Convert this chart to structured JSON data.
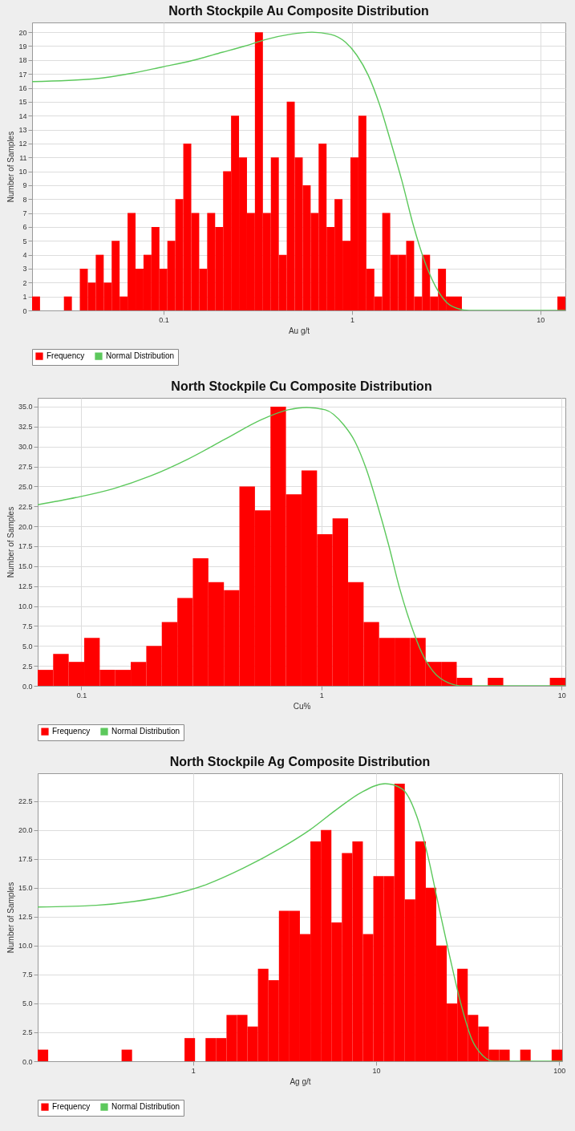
{
  "chart_data": [
    {
      "type": "histogram",
      "title": "North Stockpile Au Composite Distribution",
      "xlabel": "Au g/t",
      "ylabel": "Number of Samples",
      "log": "x",
      "grid": true,
      "legend": "bottom",
      "xlim": [
        0.02,
        13.59
      ],
      "xticks": [
        0.1,
        1,
        10
      ],
      "ylim": [
        0,
        20.7
      ],
      "yticks": [
        0,
        1,
        2,
        3,
        4,
        5,
        6,
        7,
        8,
        9,
        10,
        11,
        12,
        13,
        14,
        15,
        16,
        17,
        18,
        19,
        20
      ],
      "bins": [
        0.02,
        0.02204,
        0.0243,
        0.02678,
        0.02952,
        0.03254,
        0.03586,
        0.03953,
        0.04357,
        0.04802,
        0.05293,
        0.05834,
        0.0643,
        0.07088,
        0.07813,
        0.0861,
        0.09491,
        0.1046,
        0.1153,
        0.1271,
        0.1401,
        0.1544,
        0.1702,
        0.1876,
        0.2068,
        0.2279,
        0.2512,
        0.2769,
        0.3051,
        0.3364,
        0.3708,
        0.4087,
        0.4504,
        0.4965,
        0.5473,
        0.6031,
        0.6648,
        0.7328,
        0.8076,
        0.8902,
        0.9813,
        1.082,
        1.192,
        1.314,
        1.448,
        1.596,
        1.76,
        1.94,
        2.138,
        2.356,
        2.597,
        2.863,
        3.155,
        3.478,
        3.834,
        4.225,
        4.657,
        5.133,
        5.657,
        6.236,
        6.874,
        7.577,
        8.35,
        9.204,
        10.15,
        11.18,
        12.33,
        13.59
      ],
      "series": [
        {
          "name": "Frequency",
          "color": "#ff0000",
          "values": [
            1,
            0,
            0,
            0,
            1,
            0,
            3,
            2,
            4,
            2,
            5,
            1,
            7,
            3,
            4,
            6,
            3,
            5,
            8,
            12,
            7,
            3,
            7,
            6,
            10,
            14,
            11,
            7,
            20,
            7,
            11,
            4,
            15,
            11,
            9,
            7,
            12,
            6,
            8,
            5,
            11,
            14,
            3,
            1,
            7,
            4,
            4,
            5,
            1,
            4,
            1,
            3,
            1,
            1,
            0,
            0,
            0,
            0,
            0,
            0,
            0,
            0,
            0,
            0,
            0,
            0,
            1
          ]
        },
        {
          "name": "Normal Distribution",
          "type": "line",
          "color": "#5cc85c",
          "x": [
            0.02,
            0.0431,
            0.0681,
            0.0982,
            0.1416,
            0.204,
            0.269,
            0.354,
            0.466,
            0.613,
            0.77,
            0.925,
            1.06,
            1.22,
            1.4,
            1.6,
            1.84,
            2.11,
            2.42,
            2.77,
            3.18,
            3.65,
            4.19,
            13.59
          ],
          "values": [
            16.45,
            16.65,
            17.05,
            17.5,
            17.96,
            18.55,
            19.0,
            19.5,
            19.84,
            20.0,
            19.84,
            19.27,
            18.35,
            16.9,
            14.8,
            12.2,
            9.33,
            6.2,
            3.6,
            1.75,
            0.58,
            0.13,
            0,
            0
          ]
        }
      ]
    },
    {
      "type": "histogram",
      "title": "North Stockpile Cu Composite Distribution",
      "xlabel": "Cu%",
      "ylabel": "Number of Samples",
      "log": "x",
      "grid": true,
      "legend": "bottom",
      "xlim": [
        0.0658,
        10.37
      ],
      "xticks": [
        0.1,
        1,
        10
      ],
      "ylim": [
        0,
        36.1
      ],
      "yticks": [
        {
          "value": 0,
          "label": "0.0"
        },
        2.5,
        {
          "value": 5,
          "label": "5.0"
        },
        7.5,
        {
          "value": 10,
          "label": "10.0"
        },
        12.5,
        {
          "value": 15,
          "label": "15.0"
        },
        17.5,
        {
          "value": 20,
          "label": "20.0"
        },
        22.5,
        {
          "value": 25,
          "label": "25.0"
        },
        27.5,
        {
          "value": 30,
          "label": "30.0"
        },
        32.5,
        {
          "value": 35,
          "label": "35.0"
        }
      ],
      "bins": [
        0.0658,
        0.07631,
        0.08857,
        0.1028,
        0.1193,
        0.1384,
        0.1606,
        0.1864,
        0.2163,
        0.2511,
        0.2913,
        0.3381,
        0.3924,
        0.4553,
        0.5284,
        0.6132,
        0.7115,
        0.8258,
        0.9583,
        1.112,
        1.291,
        1.498,
        1.738,
        2.017,
        2.341,
        2.716,
        3.152,
        3.658,
        4.245,
        4.927,
        5.717,
        6.634,
        7.7,
        8.935,
        10.37
      ],
      "series": [
        {
          "name": "Frequency",
          "color": "#ff0000",
          "values": [
            2,
            4,
            3,
            6,
            2,
            2,
            3,
            5,
            8,
            11,
            16,
            13,
            12,
            25,
            22,
            35,
            24,
            27,
            19,
            21,
            13,
            8,
            6,
            6,
            6,
            3,
            3,
            1,
            0,
            1,
            0,
            0,
            0,
            1
          ]
        },
        {
          "name": "Normal Distribution",
          "type": "line",
          "color": "#5cc85c",
          "x": [
            0.0658,
            0.0949,
            0.1356,
            0.1938,
            0.277,
            0.3957,
            0.5651,
            0.7258,
            0.8675,
            1.037,
            1.239,
            1.38,
            1.536,
            1.71,
            1.903,
            2.117,
            2.356,
            2.622,
            2.92,
            3.369,
            3.883,
            10.37
          ],
          "values": [
            22.7,
            23.6,
            24.7,
            26.3,
            28.4,
            30.9,
            33.4,
            34.6,
            34.9,
            34.6,
            32.7,
            30.6,
            27.2,
            22.7,
            17.7,
            12.2,
            7.7,
            4.1,
            1.8,
            0.4,
            0,
            0
          ]
        }
      ]
    },
    {
      "type": "histogram",
      "title": "North Stockpile Ag Composite Distribution",
      "xlabel": "Ag g/t",
      "ylabel": "Number of Samples",
      "log": "x",
      "grid": true,
      "legend": "bottom",
      "xlim": [
        0.1417,
        103.8
      ],
      "xticks": [
        1,
        10,
        100
      ],
      "ylim": [
        0,
        24.9
      ],
      "yticks": [
        {
          "value": 0,
          "label": "0.0"
        },
        2.5,
        {
          "value": 5,
          "label": "5.0"
        },
        7.5,
        {
          "value": 10,
          "label": "10.0"
        },
        12.5,
        {
          "value": 15,
          "label": "15.0"
        },
        17.5,
        {
          "value": 20,
          "label": "20.0"
        },
        22.5
      ],
      "bins": [
        0.1417,
        0.1617,
        0.1845,
        0.2105,
        0.2402,
        0.274,
        0.3126,
        0.3567,
        0.407,
        0.4644,
        0.5299,
        0.6046,
        0.6899,
        0.7872,
        0.8983,
        1.025,
        1.17,
        1.334,
        1.523,
        1.737,
        1.982,
        2.262,
        2.581,
        2.945,
        3.36,
        3.834,
        4.375,
        4.992,
        5.697,
        6.5,
        7.417,
        8.463,
        9.656,
        11.02,
        12.57,
        14.34,
        16.37,
        18.68,
        21.31,
        24.31,
        27.74,
        31.65,
        36.12,
        41.21,
        47.02,
        53.65,
        61.22,
        69.84,
        79.69,
        90.93,
        103.8
      ],
      "series": [
        {
          "name": "Frequency",
          "color": "#ff0000",
          "values": [
            1,
            0,
            0,
            0,
            0,
            0,
            0,
            0,
            1,
            0,
            0,
            0,
            0,
            0,
            2,
            0,
            2,
            2,
            4,
            4,
            3,
            8,
            7,
            13,
            13,
            11,
            19,
            20,
            12,
            18,
            19,
            11,
            16,
            16,
            24,
            14,
            19,
            15,
            10,
            5,
            8,
            4,
            3,
            1,
            1,
            0,
            1,
            0,
            0,
            1
          ]
        },
        {
          "name": "Normal Distribution",
          "type": "line",
          "color": "#5cc85c",
          "x": [
            0.1417,
            0.296,
            0.4701,
            0.7468,
            1.187,
            1.887,
            2.999,
            4.345,
            6.006,
            8.31,
            11.22,
            13.83,
            16.65,
            19.13,
            21.97,
            25.24,
            29.0,
            33.36,
            38.32,
            44.01,
            103.8
          ],
          "values": [
            13.33,
            13.48,
            13.8,
            14.36,
            15.29,
            16.7,
            18.4,
            20.0,
            21.7,
            23.25,
            24.0,
            23.56,
            21.2,
            17.8,
            13.4,
            9.05,
            5.0,
            1.87,
            0.47,
            0,
            0
          ]
        }
      ]
    }
  ]
}
